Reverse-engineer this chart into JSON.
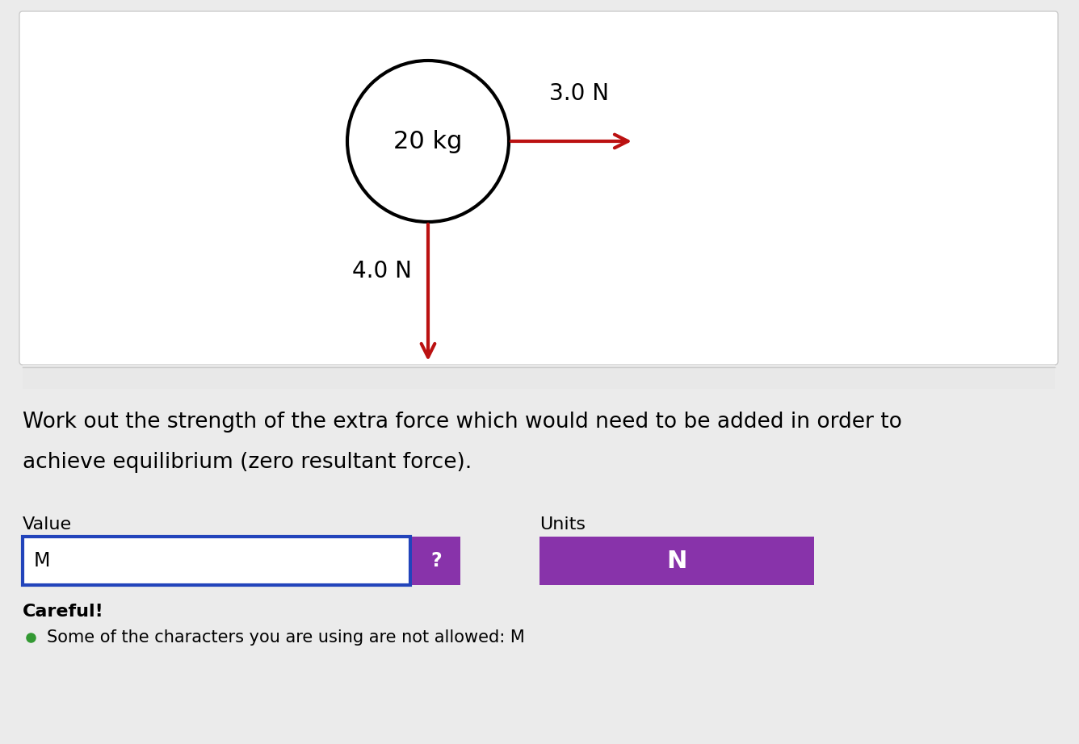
{
  "background_color": "#ebebeb",
  "panel_bg": "#ffffff",
  "arrow_color": "#bb1111",
  "arrow_lw": 3.0,
  "circle_label": "20 kg",
  "arrow_right_label": "3.0 N",
  "arrow_down_label": "4.0 N",
  "question_text_line1": "Work out the strength of the extra force which would need to be added in order to",
  "question_text_line2": "achieve equilibrium (zero resultant force).",
  "question_fontsize": 19,
  "value_label": "Value",
  "units_label": "Units",
  "input_box_text": "M",
  "input_box_border_color": "#2244bb",
  "question_btn_color": "#8833aa",
  "question_btn_text": "?",
  "units_box_color": "#8833aa",
  "units_box_text": "N",
  "careful_text": "Careful!",
  "bullet_text": "Some of the characters you are using are not allowed: M",
  "bullet_color": "#339933"
}
